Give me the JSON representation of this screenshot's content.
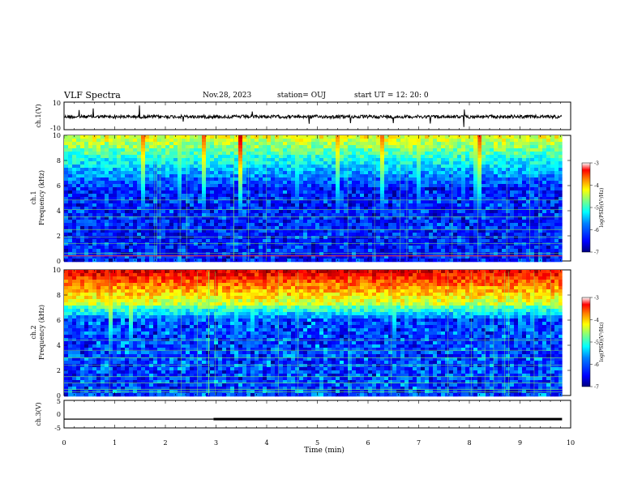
{
  "header": {
    "title": "VLF Spectra",
    "date": "Nov.28, 2023",
    "station": "station= OUJ",
    "start_ut": "start  UT  =   12: 20: 0"
  },
  "chart_data": [
    {
      "type": "line",
      "panel": "ch1-waveform",
      "ylabel": "ch.1(V)",
      "ylim": [
        -10,
        10
      ],
      "y_ticks": [
        "10",
        "-10"
      ],
      "x_range_min": [
        0,
        9.83
      ],
      "baseline_v": 0
    },
    {
      "type": "heatmap",
      "panel": "ch1-spectrogram",
      "ylabel_line1": "ch.1",
      "ylabel_line2": "Frequency (kHz)",
      "ylim": [
        0,
        10
      ],
      "y_ticks": [
        "0",
        "2",
        "4",
        "6",
        "8",
        "10"
      ],
      "x_range_min": [
        0,
        9.83
      ],
      "colorbar": {
        "label": "log(PSD)(V²/Hz)",
        "range": [
          -7,
          -3
        ],
        "ticks": [
          "-3",
          "-4",
          "-5",
          "-6",
          "-7"
        ]
      }
    },
    {
      "type": "heatmap",
      "panel": "ch2-spectrogram",
      "ylabel_line1": "ch.2",
      "ylabel_line2": "Frequency (kHz)",
      "ylim": [
        0,
        10
      ],
      "y_ticks": [
        "0",
        "2",
        "4",
        "6",
        "8",
        "10"
      ],
      "x_range_min": [
        0,
        9.83
      ],
      "colorbar": {
        "label": "log(PSD)(V²/Hz)",
        "range": [
          -7,
          -3
        ],
        "ticks": [
          "-3",
          "-4",
          "-5",
          "-6",
          "-7"
        ]
      }
    },
    {
      "type": "line",
      "panel": "ch3-trace",
      "ylabel": "ch.3(V)",
      "ylim": [
        -5,
        5
      ],
      "y_ticks": [
        "5",
        "0",
        "-5"
      ],
      "x": [
        0,
        2.95,
        2.95,
        9.83
      ],
      "y": [
        -1.8,
        -1.8,
        -1.8,
        -1.8
      ],
      "thick_from_min": 2.95
    }
  ],
  "xaxis": {
    "label": "Time  (min)",
    "ticks": [
      "0",
      "1",
      "2",
      "3",
      "4",
      "5",
      "6",
      "7",
      "8",
      "9",
      "10"
    ],
    "range": [
      0,
      10
    ]
  },
  "colors": {
    "scale": [
      "#00007f",
      "#0000ff",
      "#0080ff",
      "#00ffff",
      "#80ff80",
      "#ffff00",
      "#ff8000",
      "#ff0000",
      "#7f0000"
    ]
  }
}
